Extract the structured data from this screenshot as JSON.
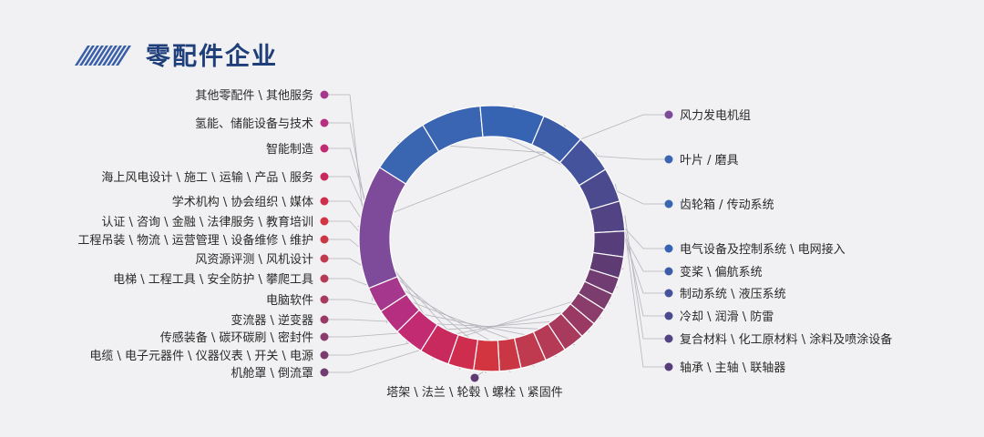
{
  "header": {
    "title": "零配件企业"
  },
  "chart_data": {
    "type": "pie",
    "donut": true,
    "title": "零配件企业",
    "categories": [
      "风力发电机组",
      "叶片 / 磨具",
      "齿轮箱 / 传动系统",
      "电气设备及控制系统 \\ 电网接入",
      "变桨 \\ 偏航系统",
      "制动系统 \\ 液压系统",
      "冷却 \\ 润滑 \\ 防雷",
      "复合材料 \\ 化工原材料 \\ 涂料及喷涂设备",
      "轴承 \\ 主轴 \\ 联轴器",
      "塔架 \\ 法兰 \\ 轮毂 \\ 螺栓 \\ 紧固件",
      "机舱罩 \\ 倒流罩",
      "电缆 \\ 电子元器件 \\ 仪器仪表 \\ 开关 \\ 电源",
      "传感装备 \\ 碳环碳刷 \\ 密封件",
      "变流器 \\ 逆变器",
      "电脑软件",
      "电梯 \\ 工程工具 \\ 安全防护 \\ 攀爬工具",
      "风资源评测 \\ 风机设计",
      "工程吊装 \\ 物流 \\ 运营管理 \\ 设备维修 \\ 维护",
      "认证 \\ 咨询 \\ 金融 \\ 法律服务 \\ 教育培训",
      "学术机构 \\ 协会组织 \\ 媒体",
      "海上风电设计 \\ 施工 \\ 运输 \\ 产品 \\ 服务",
      "智能制造",
      "氢能、储能设备与技术",
      "其他零配件 \\ 其他服务"
    ],
    "values": [
      14.5,
      7.0,
      7.0,
      7.5,
      5.0,
      4.5,
      4.0,
      3.5,
      3.0,
      2.5,
      2.0,
      2.0,
      2.0,
      2.0,
      2.5,
      2.5,
      3.0,
      2.5,
      3.0,
      3.0,
      3.5,
      3.5,
      3.0,
      3.0
    ],
    "colors": [
      "#7e4a9a",
      "#3a65b0",
      "#3965b2",
      "#3763b3",
      "#3c5ca8",
      "#44539c",
      "#4b4a8f",
      "#524384",
      "#573e7a",
      "#5f3b73",
      "#703c71",
      "#7b3d6e",
      "#8a3c6a",
      "#9a3a64",
      "#a83a5e",
      "#b43a56",
      "#bf3a4e",
      "#ca3744",
      "#d23440",
      "#cf2d4d",
      "#c92a5d",
      "#c22a72",
      "#b52e80",
      "#a5378c"
    ]
  }
}
